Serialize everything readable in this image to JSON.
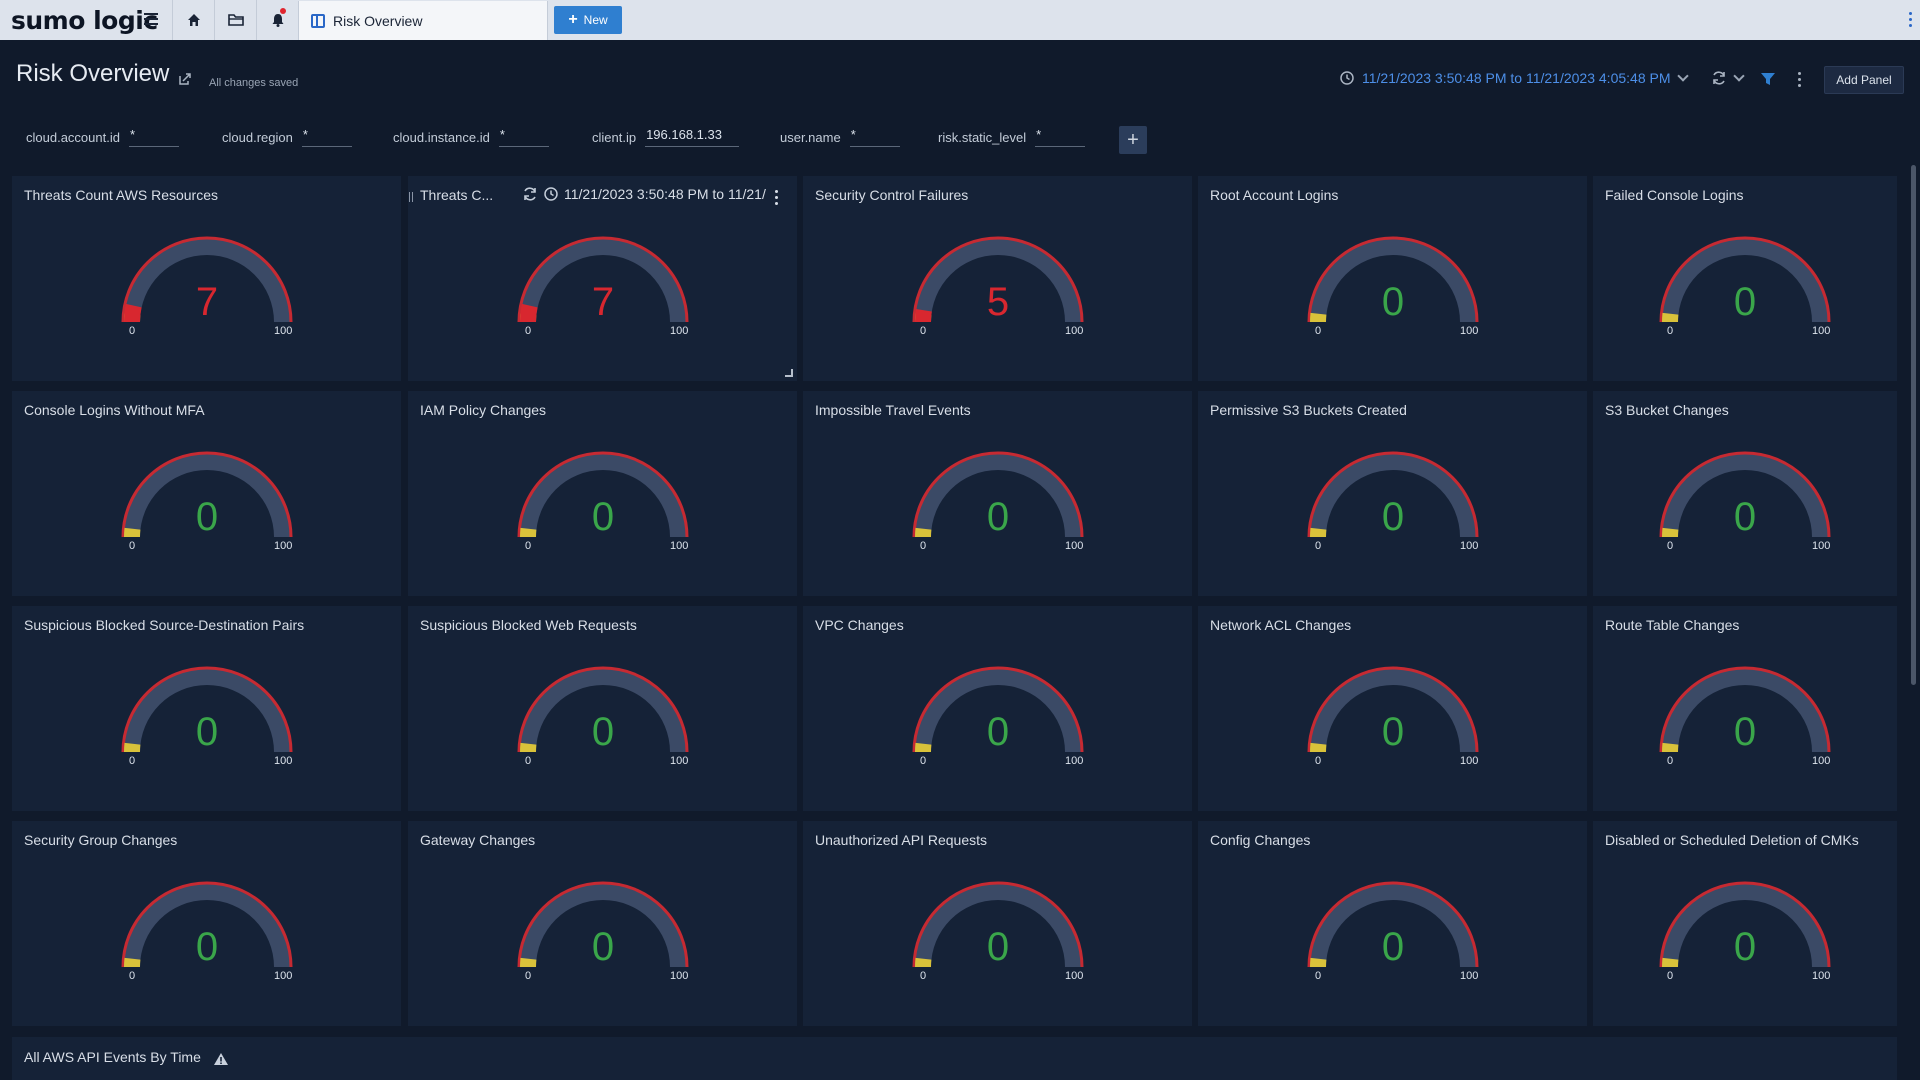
{
  "nav": {
    "logo": "sumo logic",
    "tab_label": "Risk Overview",
    "new_label": "New"
  },
  "header": {
    "title": "Risk Overview",
    "saved_status": "All changes saved",
    "time_range": "11/21/2023 3:50:48 PM to 11/21/2023 4:05:48 PM",
    "add_panel_label": "Add Panel"
  },
  "filters": [
    {
      "label": "cloud.account.id",
      "value": "*"
    },
    {
      "label": "cloud.region",
      "value": "*"
    },
    {
      "label": "cloud.instance.id",
      "value": "*"
    },
    {
      "label": "client.ip",
      "value": "196.168.1.33"
    },
    {
      "label": "user.name",
      "value": "*"
    },
    {
      "label": "risk.static_level",
      "value": "*"
    }
  ],
  "panels": [
    {
      "title": "Threats Count AWS Resources",
      "value": 7,
      "min": "0",
      "max": "100"
    },
    {
      "title": "Threats C...",
      "value": 7,
      "min": "0",
      "max": "100",
      "time": "11/21/2023 3:50:48 PM to 11/21/"
    },
    {
      "title": "Security Control Failures",
      "value": 5,
      "min": "0",
      "max": "100"
    },
    {
      "title": "Root Account Logins",
      "value": 0,
      "min": "0",
      "max": "100"
    },
    {
      "title": "Failed Console Logins",
      "value": 0,
      "min": "0",
      "max": "100"
    },
    {
      "title": "Console Logins Without MFA",
      "value": 0,
      "min": "0",
      "max": "100"
    },
    {
      "title": "IAM Policy Changes",
      "value": 0,
      "min": "0",
      "max": "100"
    },
    {
      "title": "Impossible Travel Events",
      "value": 0,
      "min": "0",
      "max": "100"
    },
    {
      "title": "Permissive S3 Buckets Created",
      "value": 0,
      "min": "0",
      "max": "100"
    },
    {
      "title": "S3 Bucket Changes",
      "value": 0,
      "min": "0",
      "max": "100"
    },
    {
      "title": "Suspicious Blocked Source-Destination Pairs",
      "value": 0,
      "min": "0",
      "max": "100"
    },
    {
      "title": "Suspicious Blocked Web Requests",
      "value": 0,
      "min": "0",
      "max": "100"
    },
    {
      "title": "VPC Changes",
      "value": 0,
      "min": "0",
      "max": "100"
    },
    {
      "title": "Network ACL Changes",
      "value": 0,
      "min": "0",
      "max": "100"
    },
    {
      "title": "Route Table Changes",
      "value": 0,
      "min": "0",
      "max": "100"
    },
    {
      "title": "Security Group Changes",
      "value": 0,
      "min": "0",
      "max": "100"
    },
    {
      "title": "Gateway Changes",
      "value": 0,
      "min": "0",
      "max": "100"
    },
    {
      "title": "Unauthorized API Requests",
      "value": 0,
      "min": "0",
      "max": "100"
    },
    {
      "title": "Config Changes",
      "value": 0,
      "min": "0",
      "max": "100"
    },
    {
      "title": "Disabled or Scheduled Deletion of CMKs",
      "value": 0,
      "min": "0",
      "max": "100"
    }
  ],
  "bottom_panel": {
    "title": "All AWS API Events By Time"
  },
  "colors": {
    "value_high": "#d8272f",
    "value_zero": "#3aa64a",
    "gauge_track": "#3b4a66",
    "gauge_rim": "#c62a32",
    "gauge_low_tick": "#d9c23a",
    "accent": "#2f7fd0"
  }
}
